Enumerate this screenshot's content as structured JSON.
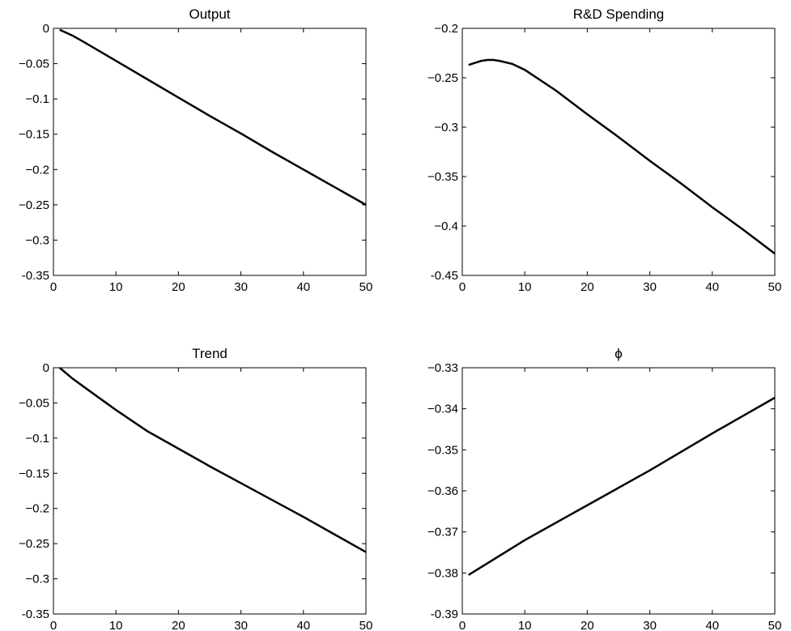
{
  "chart_data": [
    {
      "type": "line",
      "title": "Output",
      "color": "#000000",
      "x": [
        1,
        3,
        5,
        10,
        15,
        20,
        25,
        30,
        35,
        40,
        45,
        50
      ],
      "values": [
        -0.002,
        -0.01,
        -0.02,
        -0.046,
        -0.072,
        -0.098,
        -0.124,
        -0.149,
        -0.175,
        -0.2,
        -0.225,
        -0.25
      ],
      "xlim": [
        0,
        50
      ],
      "xticks": [
        0,
        10,
        20,
        30,
        40,
        50
      ],
      "ylim": [
        -0.35,
        0
      ],
      "yticks": [
        {
          "value": -0.35,
          "label": "-0.35"
        },
        {
          "value": -0.3,
          "label": "−0.3"
        },
        {
          "value": -0.25,
          "label": "−0.25"
        },
        {
          "value": -0.2,
          "label": "−0.2"
        },
        {
          "value": -0.15,
          "label": "−0.15"
        },
        {
          "value": -0.1,
          "label": "−0.1"
        },
        {
          "value": -0.05,
          "label": "−0.05"
        },
        0
      ]
    },
    {
      "type": "line",
      "title": "R&D Spending",
      "color": "#000000",
      "x": [
        1,
        2,
        3,
        4,
        5,
        6,
        8,
        10,
        15,
        20,
        25,
        30,
        35,
        40,
        45,
        50
      ],
      "values": [
        -0.237,
        -0.235,
        -0.233,
        -0.232,
        -0.232,
        -0.233,
        -0.236,
        -0.242,
        -0.263,
        -0.287,
        -0.31,
        -0.334,
        -0.357,
        -0.381,
        -0.404,
        -0.428
      ],
      "xlim": [
        0,
        50
      ],
      "xticks": [
        0,
        10,
        20,
        30,
        40,
        50
      ],
      "ylim": [
        -0.45,
        -0.2
      ],
      "yticks": [
        {
          "value": -0.45,
          "label": "-0.45"
        },
        {
          "value": -0.4,
          "label": "−0.4"
        },
        {
          "value": -0.35,
          "label": "−0.35"
        },
        {
          "value": -0.3,
          "label": "−0.3"
        },
        {
          "value": -0.25,
          "label": "−0.25"
        },
        {
          "value": -0.2,
          "label": "−0.2"
        }
      ]
    },
    {
      "type": "line",
      "title": "Trend",
      "color": "#000000",
      "x": [
        1,
        3,
        5,
        10,
        15,
        20,
        25,
        30,
        35,
        40,
        45,
        50
      ],
      "values": [
        0,
        -0.015,
        -0.028,
        -0.06,
        -0.09,
        -0.115,
        -0.14,
        -0.164,
        -0.188,
        -0.212,
        -0.237,
        -0.262
      ],
      "xlim": [
        0,
        50
      ],
      "xticks": [
        0,
        10,
        20,
        30,
        40,
        50
      ],
      "ylim": [
        -0.35,
        0
      ],
      "yticks": [
        {
          "value": -0.35,
          "label": "-0.35"
        },
        {
          "value": -0.3,
          "label": "−0.3"
        },
        {
          "value": -0.25,
          "label": "−0.25"
        },
        {
          "value": -0.2,
          "label": "−0.2"
        },
        {
          "value": -0.15,
          "label": "−0.15"
        },
        {
          "value": -0.1,
          "label": "−0.1"
        },
        {
          "value": -0.05,
          "label": "−0.05"
        },
        0
      ]
    },
    {
      "type": "line",
      "title": "ϕ",
      "color": "#000000",
      "x": [
        1,
        10,
        20,
        30,
        40,
        50
      ],
      "values": [
        -0.3805,
        -0.372,
        -0.3635,
        -0.355,
        -0.346,
        -0.3373
      ],
      "xlim": [
        0,
        50
      ],
      "xticks": [
        0,
        10,
        20,
        30,
        40,
        50
      ],
      "ylim": [
        -0.39,
        -0.33
      ],
      "yticks": [
        {
          "value": -0.39,
          "label": "-0.39"
        },
        {
          "value": -0.38,
          "label": "−0.38"
        },
        {
          "value": -0.37,
          "label": "−0.37"
        },
        {
          "value": -0.36,
          "label": "−0.36"
        },
        {
          "value": -0.35,
          "label": "−0.35"
        },
        {
          "value": -0.34,
          "label": "−0.34"
        },
        {
          "value": -0.33,
          "label": "−0.33"
        }
      ]
    }
  ]
}
